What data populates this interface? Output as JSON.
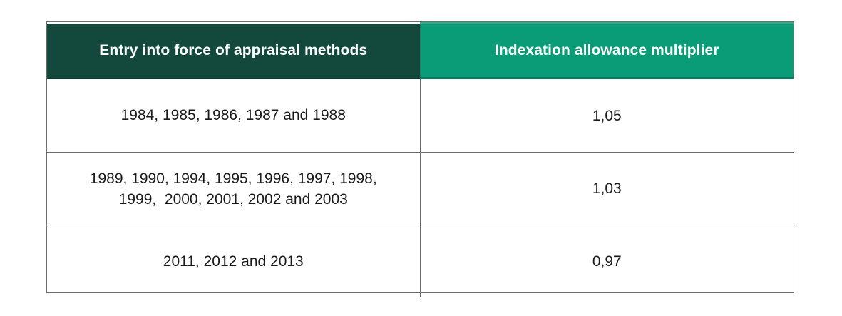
{
  "table": {
    "headers": [
      "Entry into force of appraisal methods",
      "Indexation allowance multiplier"
    ],
    "rows": [
      {
        "period": "1984, 1985, 1986, 1987 and 1988",
        "multiplier": "1,05"
      },
      {
        "period": "1989, 1990, 1994, 1995, 1996, 1997, 1998,",
        "period_line2": "1999,  2000, 2001, 2002 and 2003",
        "multiplier": "1,03"
      },
      {
        "period": "2011, 2012 and 2013",
        "multiplier": "0,97"
      }
    ],
    "colors": {
      "header_left": "#12493c",
      "header_right": "#0a9c77",
      "border": "#6b6b6b"
    }
  }
}
